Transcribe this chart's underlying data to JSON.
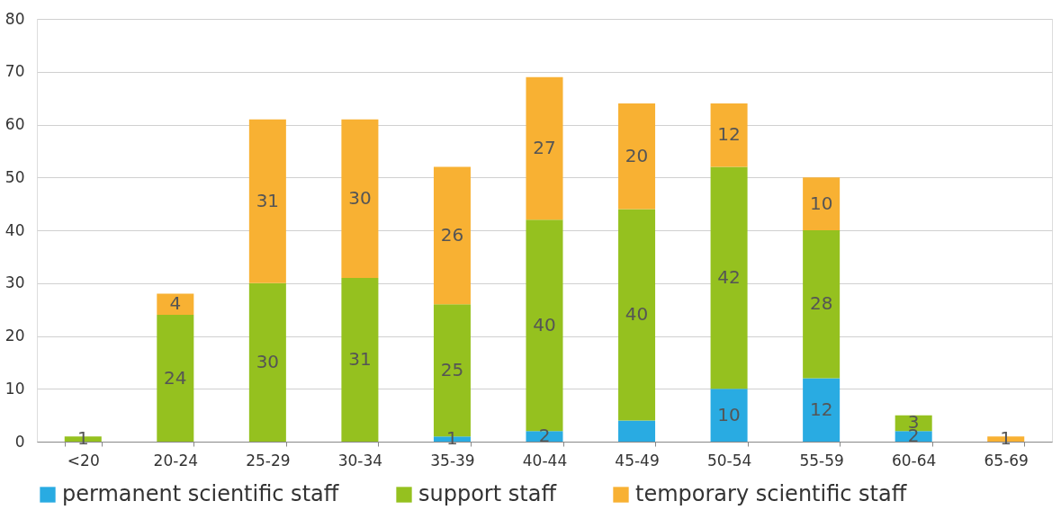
{
  "chart_data": {
    "type": "bar",
    "stacked": true,
    "categories": [
      "<20",
      "20-24",
      "25-29",
      "30-34",
      "35-39",
      "40-44",
      "45-49",
      "50-54",
      "55-59",
      "60-64",
      "65-69"
    ],
    "series": [
      {
        "name": "permanent scientific staff",
        "color": "#29abe2",
        "values": [
          0,
          0,
          0,
          0,
          1,
          2,
          4,
          10,
          12,
          2,
          0
        ],
        "value_labels": [
          null,
          null,
          null,
          null,
          "1",
          "2",
          null,
          "10",
          "12",
          "2",
          null
        ]
      },
      {
        "name": "support staff",
        "color": "#95c11f",
        "values": [
          1,
          24,
          30,
          31,
          25,
          40,
          40,
          42,
          28,
          3,
          0
        ],
        "value_labels": [
          "1",
          "24",
          "30",
          "31",
          "25",
          "40",
          "40",
          "42",
          "28",
          "3",
          null
        ]
      },
      {
        "name": "temporary scientific staff",
        "color": "#f8b133",
        "values": [
          0,
          4,
          31,
          30,
          26,
          27,
          20,
          12,
          10,
          0,
          1
        ],
        "value_labels": [
          null,
          "4",
          "31",
          "30",
          "26",
          "27",
          "20",
          "12",
          "10",
          null,
          "1"
        ]
      }
    ],
    "ylim": [
      0,
      80
    ],
    "yticks": [
      0,
      10,
      20,
      30,
      40,
      50,
      60,
      70,
      80
    ],
    "grid": "y",
    "legend": "bottom"
  }
}
